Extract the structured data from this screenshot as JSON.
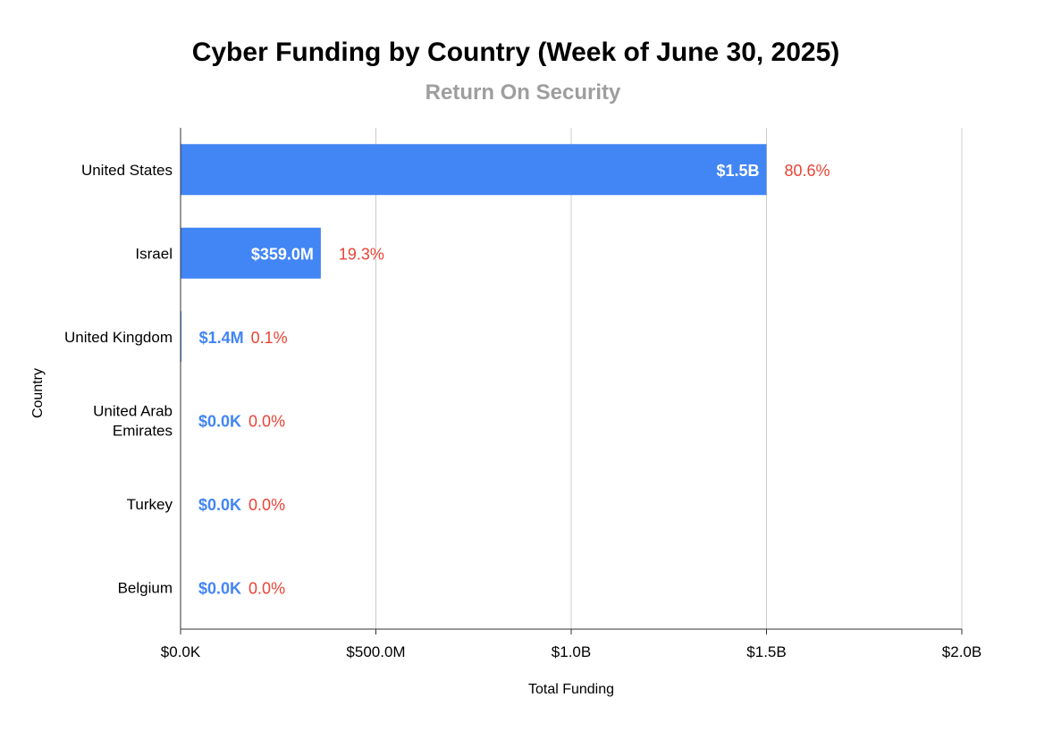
{
  "chart_data": {
    "type": "bar",
    "orientation": "horizontal",
    "title": "Cyber Funding by Country (Week of June 30, 2025)",
    "subtitle": "Return On Security",
    "xlabel": "Total Funding",
    "ylabel": "Country",
    "xlim": [
      0,
      2000000000
    ],
    "x_ticks": [
      {
        "value": 0,
        "label": "$0.0K"
      },
      {
        "value": 500000000,
        "label": "$500.0M"
      },
      {
        "value": 1000000000,
        "label": "$1.0B"
      },
      {
        "value": 1500000000,
        "label": "$1.5B"
      },
      {
        "value": 2000000000,
        "label": "$2.0B"
      }
    ],
    "grid": true,
    "categories": [
      [
        "United States"
      ],
      [
        "Israel"
      ],
      [
        "United Kingdom"
      ],
      [
        "United Arab",
        "Emirates"
      ],
      [
        "Turkey"
      ],
      [
        "Belgium"
      ]
    ],
    "values": [
      1500000000,
      359000000,
      1400000,
      0,
      0,
      0
    ],
    "value_labels": [
      "$1.5B",
      "$359.0M",
      "$1.4M",
      "$0.0K",
      "$0.0K",
      "$0.0K"
    ],
    "percent_labels": [
      "80.6%",
      "19.3%",
      "0.1%",
      "0.0%",
      "0.0%",
      "0.0%"
    ],
    "colors": {
      "bar": "#4285f4",
      "value_inside": "#ffffff",
      "value_outside": "#4285f4",
      "percent": "#ea4335",
      "grid": "#cccccc",
      "axis": "#333333",
      "subtitle": "#9e9e9e"
    }
  }
}
